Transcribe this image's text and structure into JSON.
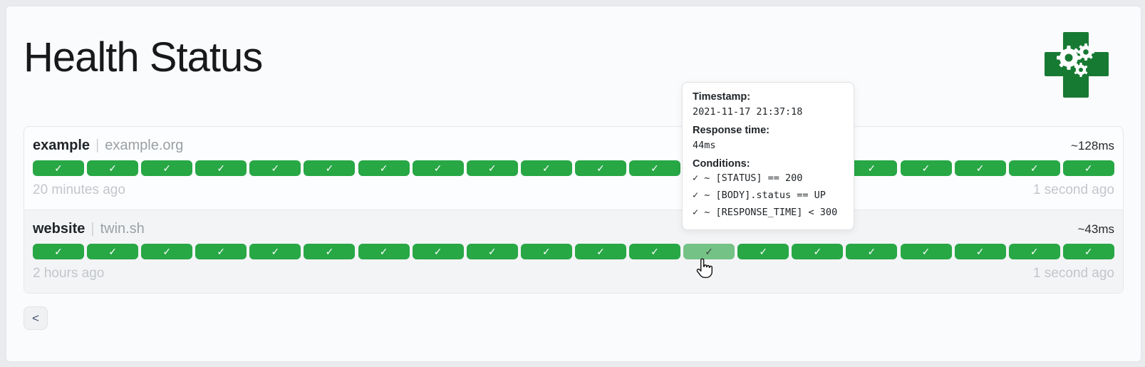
{
  "page": {
    "title": "Health Status"
  },
  "separator": "|",
  "icons": {
    "check": "✓",
    "previous_chevron": "<",
    "logo": "green-cross-gears"
  },
  "colors": {
    "bar_green": "#28a745",
    "bar_hover_green": "#74c285",
    "logo_green": "#177a33"
  },
  "endpoints": [
    {
      "name": "example",
      "url": "example.org",
      "avg_response": "~128ms",
      "oldest_result": "20 minutes ago",
      "newest_result": "1 second ago",
      "bar_count": 20,
      "bar_status": "success",
      "hovered_index": -1
    },
    {
      "name": "website",
      "url": "twin.sh",
      "avg_response": "~43ms",
      "oldest_result": "2 hours ago",
      "newest_result": "1 second ago",
      "bar_count": 20,
      "bar_status": "success",
      "hovered_index": 12
    }
  ],
  "tooltip": {
    "timestamp_label": "Timestamp:",
    "timestamp": "2021-11-17 21:37:18",
    "response_label": "Response time:",
    "response": "44ms",
    "conditions_label": "Conditions:",
    "conditions": [
      "✓ ~ [STATUS] == 200",
      "✓ ~ [BODY].status == UP",
      "✓ ~ [RESPONSE_TIME] < 300"
    ]
  },
  "pagination": {
    "previous_label": "<"
  }
}
